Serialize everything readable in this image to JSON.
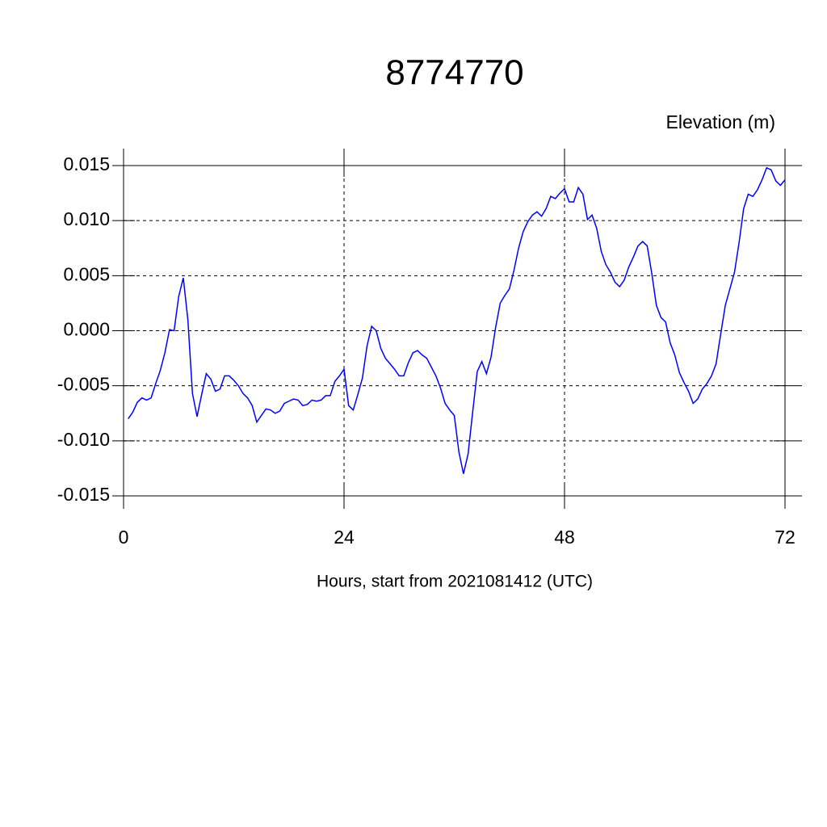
{
  "chart_data": {
    "type": "line",
    "title": "8774770",
    "subtitle": "Elevation (m)",
    "x_label": "Hours, start from 2021081412 (UTC)",
    "x": [
      0.5,
      1,
      1.5,
      2,
      2.5,
      3,
      3.5,
      4,
      4.5,
      5,
      5.5,
      6,
      6.5,
      7,
      7.5,
      8,
      8.5,
      9,
      9.5,
      10,
      10.5,
      11,
      11.5,
      12,
      12.5,
      13,
      13.5,
      14,
      14.5,
      15,
      15.5,
      16,
      16.5,
      17,
      17.5,
      18,
      18.5,
      19,
      19.5,
      20,
      20.5,
      21,
      21.5,
      22,
      22.5,
      23,
      23.5,
      24,
      24.5,
      25,
      25.5,
      26,
      26.5,
      27,
      27.5,
      28,
      28.5,
      29,
      29.5,
      30,
      30.5,
      31,
      31.5,
      32,
      32.5,
      33,
      33.5,
      34,
      34.5,
      35,
      35.5,
      36,
      36.5,
      37,
      37.5,
      38,
      38.5,
      39,
      39.5,
      40,
      40.5,
      41,
      41.5,
      42,
      42.5,
      43,
      43.5,
      44,
      44.5,
      45,
      45.5,
      46,
      46.5,
      47,
      47.5,
      48,
      48.5,
      49,
      49.5,
      50,
      50.5,
      51,
      51.5,
      52,
      52.5,
      53,
      53.5,
      54,
      54.5,
      55,
      55.5,
      56,
      56.5,
      57,
      57.5,
      58,
      58.5,
      59,
      59.5,
      60,
      60.5,
      61,
      61.5,
      62,
      62.5,
      63,
      63.5,
      64,
      64.5,
      65,
      65.5,
      66,
      66.5,
      67,
      67.5,
      68,
      68.5,
      69,
      69.5,
      70,
      70.5,
      71,
      71.5,
      72
    ],
    "series": [
      {
        "color": "#0000ff",
        "values": [
          -0.008,
          -0.0074,
          -0.0065,
          -0.0061,
          -0.0063,
          -0.0061,
          -0.0048,
          -0.0036,
          -0.002,
          0.0001,
          0.0,
          0.0031,
          0.0048,
          0.001,
          -0.0057,
          -0.0078,
          -0.0058,
          -0.0039,
          -0.0044,
          -0.0055,
          -0.0053,
          -0.0041,
          -0.0041,
          -0.0045,
          -0.005,
          -0.0057,
          -0.0061,
          -0.0068,
          -0.0083,
          -0.0077,
          -0.0071,
          -0.0072,
          -0.0075,
          -0.0073,
          -0.0066,
          -0.0064,
          -0.0062,
          -0.0063,
          -0.0068,
          -0.0067,
          -0.0063,
          -0.0064,
          -0.0063,
          -0.0059,
          -0.0059,
          -0.0046,
          -0.0041,
          -0.0035,
          -0.0068,
          -0.0072,
          -0.0058,
          -0.0043,
          -0.0014,
          0.0004,
          0.0,
          -0.0016,
          -0.0025,
          -0.003,
          -0.0035,
          -0.0041,
          -0.0041,
          -0.0029,
          -0.002,
          -0.0018,
          -0.0022,
          -0.0025,
          -0.0033,
          -0.0041,
          -0.0052,
          -0.0066,
          -0.0072,
          -0.0077,
          -0.011,
          -0.013,
          -0.0112,
          -0.0074,
          -0.0037,
          -0.0028,
          -0.0039,
          -0.0024,
          0.0003,
          0.0025,
          0.0032,
          0.0038,
          0.0055,
          0.0075,
          0.009,
          0.0099,
          0.0105,
          0.0108,
          0.0104,
          0.0111,
          0.0122,
          0.012,
          0.0125,
          0.0129,
          0.0117,
          0.0117,
          0.013,
          0.0124,
          0.0101,
          0.0105,
          0.0093,
          0.0072,
          0.006,
          0.0053,
          0.0044,
          0.004,
          0.0046,
          0.0058,
          0.0067,
          0.0077,
          0.0081,
          0.0077,
          0.0052,
          0.0023,
          0.0012,
          0.0008,
          -0.0011,
          -0.0022,
          -0.0038,
          -0.0047,
          -0.0055,
          -0.0066,
          -0.0062,
          -0.0053,
          -0.0048,
          -0.0041,
          -0.003,
          -0.0003,
          0.0023,
          0.0038,
          0.0053,
          0.008,
          0.0111,
          0.0124,
          0.0122,
          0.0128,
          0.0137,
          0.0148,
          0.0146,
          0.0136,
          0.0132,
          0.0137
        ]
      }
    ],
    "xlim": [
      0,
      72
    ],
    "xticks": [
      0,
      24,
      48,
      72
    ],
    "ylim": [
      -0.015,
      0.015
    ],
    "yticks": [
      {
        "value": -0.015,
        "label": "-0.015"
      },
      {
        "value": -0.01,
        "label": "-0.010"
      },
      {
        "value": -0.005,
        "label": "-0.005"
      },
      {
        "value": 0,
        "label": "0.000"
      },
      {
        "value": 0.005,
        "label": "0.005"
      },
      {
        "value": 0.01,
        "label": "0.010"
      },
      {
        "value": 0.015,
        "label": "0.015"
      }
    ],
    "grid": true
  }
}
